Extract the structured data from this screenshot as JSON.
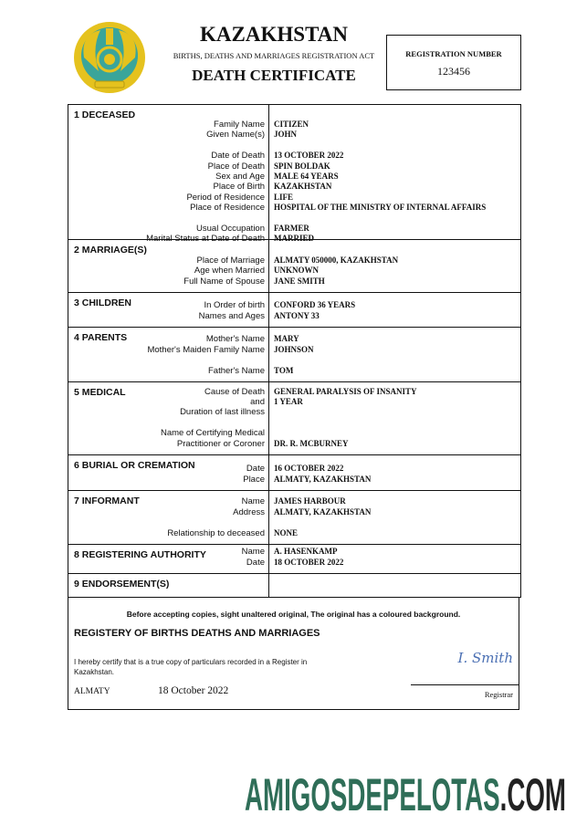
{
  "header": {
    "country": "KAZAKHSTAN",
    "act": "BIRTHS, DEATHS AND MARRIAGES REGISTRATION ACT",
    "title": "DEATH CERTIFICATE",
    "emblem_icon": "kazakhstan-coat-of-arms"
  },
  "registration": {
    "label": "REGISTRATION NUMBER",
    "number": "123456"
  },
  "sections": [
    {
      "title": "1 DECEASED",
      "lines": [
        [
          "Family Name",
          "CITIZEN"
        ],
        [
          "Given Name(s)",
          "JOHN"
        ],
        [
          "",
          ""
        ],
        [
          "Date of Death",
          "13 OCTOBER 2022"
        ],
        [
          "Place of Death",
          "SPIN BOLDAK"
        ],
        [
          "Sex and Age",
          "MALE 64 YEARS"
        ],
        [
          "Place of Birth",
          "KAZAKHSTAN"
        ],
        [
          "Period of Residence",
          "LIFE"
        ],
        [
          "Place of Residence",
          "HOSPITAL OF THE MINISTRY OF INTERNAL AFFAIRS"
        ],
        [
          "",
          ""
        ],
        [
          "Usual Occupation",
          "FARMER"
        ],
        [
          "Marital Status at Date of Death",
          "MARRIED"
        ]
      ]
    },
    {
      "title": "2 MARRIAGE(S)",
      "lines": [
        [
          "Place of Marriage",
          "ALMATY 050000,  KAZAKHSTAN"
        ],
        [
          "Age when Married",
          "UNKNOWN"
        ],
        [
          "Full Name of Spouse",
          "JANE SMITH"
        ]
      ]
    },
    {
      "title": "3 CHILDREN",
      "lines": [
        [
          "In Order of birth",
          "CONFORD 36 YEARS"
        ],
        [
          "Names and Ages",
          "ANTONY 33"
        ]
      ]
    },
    {
      "title": "4 PARENTS",
      "lines": [
        [
          "Mother's Name",
          "MARY"
        ],
        [
          "Mother's Maiden Family Name",
          "JOHNSON"
        ],
        [
          "",
          ""
        ],
        [
          "Father's Name",
          "TOM"
        ]
      ]
    },
    {
      "title": "5 MEDICAL",
      "lines": [
        [
          "Cause of Death",
          "GENERAL PARALYSIS OF INSANITY"
        ],
        [
          "and",
          "1 YEAR"
        ],
        [
          "Duration of last illness",
          ""
        ],
        [
          "",
          ""
        ],
        [
          "Name of Certifying Medical",
          ""
        ],
        [
          "Practitioner or Coroner",
          "DR. R. MCBURNEY"
        ]
      ]
    },
    {
      "title": "6 BURIAL OR CREMATION",
      "lines": [
        [
          "Date",
          "16 OCTOBER 2022"
        ],
        [
          "Place",
          "ALMATY, KAZAKHSTAN"
        ]
      ]
    },
    {
      "title": "7 INFORMANT",
      "lines": [
        [
          "Name",
          "JAMES HARBOUR"
        ],
        [
          "Address",
          "ALMATY, KAZAKHSTAN"
        ],
        [
          "",
          ""
        ],
        [
          "Relationship to deceased",
          "NONE"
        ]
      ]
    },
    {
      "title": "8 REGISTERING AUTHORITY",
      "lines": [
        [
          "Name",
          "A. HASENKAMP"
        ],
        [
          "Date",
          "18 OCTOBER 2022"
        ]
      ]
    },
    {
      "title": "9 ENDORSEMENT(S)",
      "lines": [
        [
          "",
          ""
        ]
      ]
    }
  ],
  "footer": {
    "notice": "Before accepting copies, sight unaltered original, The original has a coloured background.",
    "registry": "REGISTERY OF BIRTHS  DEATHS AND MARRIAGES",
    "certify": "I hereby certify that is a true copy of particulars recorded in a  Register in Kazakhstan.",
    "place": "ALMATY",
    "date": "18 October 2022",
    "signature": "I. Smith",
    "registrar": "Registrar"
  },
  "watermark": {
    "main": "AMIGOSDEPELOTAS",
    "suffix": ".COM",
    "color": "#2f6e58"
  }
}
